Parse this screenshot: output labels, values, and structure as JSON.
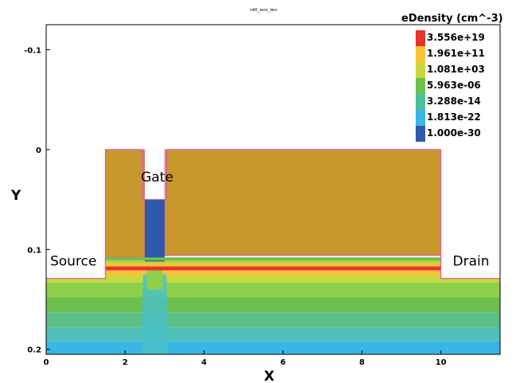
{
  "chart_data": {
    "type": "heatmap",
    "title": "n40_zero_dev",
    "xlabel": "X",
    "ylabel": "Y",
    "xlim": [
      0,
      11.5
    ],
    "ylim_inverted": [
      -0.125,
      0.205
    ],
    "x_ticks": [
      {
        "value": 0,
        "label": "0"
      },
      {
        "value": 2,
        "label": "2"
      },
      {
        "value": 4,
        "label": "4"
      },
      {
        "value": 6,
        "label": "6"
      },
      {
        "value": 8,
        "label": "8"
      },
      {
        "value": 10,
        "label": "10"
      }
    ],
    "y_ticks": [
      {
        "value": -0.1,
        "label": "-0.1"
      },
      {
        "value": 0,
        "label": "0"
      },
      {
        "value": 0.1,
        "label": "0.1"
      },
      {
        "value": 0.2,
        "label": "0.2"
      }
    ],
    "colorbar": {
      "title": "eDensity (cm^-3)",
      "labels": [
        "3.556e+19",
        "1.961e+11",
        "1.081e+03",
        "5.963e-06",
        "3.288e-14",
        "1.813e-22",
        "1.000e-30"
      ],
      "colors": [
        "#e8342a",
        "#f6c238",
        "#c8d83c",
        "#6cc04e",
        "#4fbf9a",
        "#39b6e6",
        "#2f59aa"
      ]
    },
    "annotations": [
      {
        "text": "Source",
        "x": 0.1,
        "y": 0.116
      },
      {
        "text": "Gate",
        "x": 2.4,
        "y": 0.032
      },
      {
        "text": "Drain",
        "x": 10.3,
        "y": 0.116
      }
    ],
    "regions": [
      {
        "name": "oxide-left",
        "x": [
          1.5,
          2.5
        ],
        "y": [
          0,
          0.108
        ],
        "color": "#c9982d"
      },
      {
        "name": "oxide-right",
        "x": [
          3.0,
          10.0
        ],
        "y": [
          0,
          0.106
        ],
        "color": "#c9982d"
      },
      {
        "name": "gate-contact",
        "x": [
          2.5,
          3.0
        ],
        "y": [
          0.05,
          0.112
        ],
        "color": "#2f59aa"
      },
      {
        "name": "substrate",
        "x": [
          0,
          11.5
        ],
        "y": [
          0.108,
          0.205
        ],
        "color": "#7ec66b"
      }
    ],
    "bands": [
      {
        "y": [
          0.108,
          0.111
        ],
        "color": "#6cc04e"
      },
      {
        "y": [
          0.111,
          0.114
        ],
        "color": "#b6d23c"
      },
      {
        "y": [
          0.114,
          0.117
        ],
        "color": "#f6c238"
      },
      {
        "y": [
          0.117,
          0.121
        ],
        "color": "#e8342a"
      },
      {
        "y": [
          0.121,
          0.126
        ],
        "color": "#f6c238"
      },
      {
        "y": [
          0.126,
          0.133
        ],
        "color": "#c8d83c"
      },
      {
        "y": [
          0.133,
          0.148
        ],
        "color": "#8ed04a"
      },
      {
        "y": [
          0.148,
          0.163
        ],
        "color": "#6cc04e"
      },
      {
        "y": [
          0.163,
          0.178
        ],
        "color": "#5cbf86"
      },
      {
        "y": [
          0.178,
          0.192
        ],
        "color": "#4fbfb8"
      },
      {
        "y": [
          0.192,
          0.205
        ],
        "color": "#39b6e6"
      }
    ]
  }
}
